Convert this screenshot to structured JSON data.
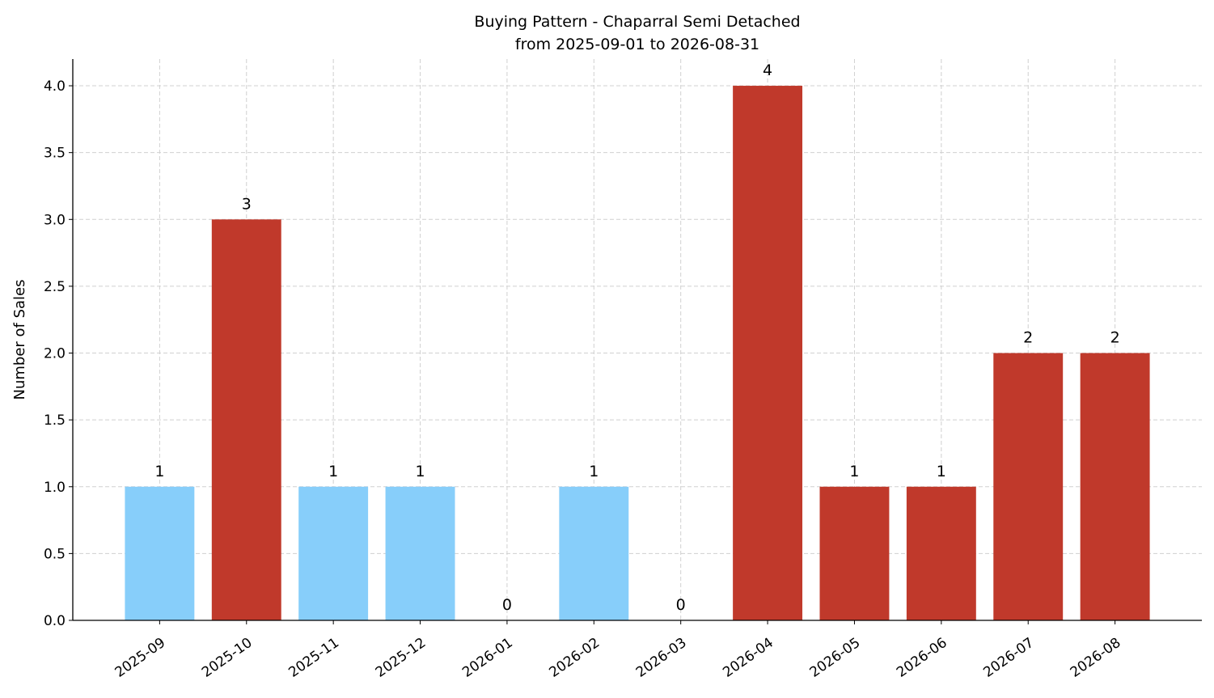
{
  "chart_data": {
    "type": "bar",
    "title": "Buying Pattern - Chaparral Semi Detached",
    "subtitle": "from 2025-09-01 to 2026-08-31",
    "y_label": "Number of Sales",
    "categories": [
      "2025-09",
      "2025-10",
      "2025-11",
      "2025-12",
      "2026-01",
      "2026-02",
      "2026-03",
      "2026-04",
      "2026-05",
      "2026-06",
      "2026-07",
      "2026-08"
    ],
    "values": [
      1,
      3,
      1,
      1,
      0,
      1,
      0,
      4,
      1,
      1,
      2,
      2
    ],
    "colors": [
      "#87cefa",
      "#c0392b",
      "#87cefa",
      "#87cefa",
      "#87cefa",
      "#87cefa",
      "#87cefa",
      "#c0392b",
      "#c0392b",
      "#c0392b",
      "#c0392b",
      "#c0392b"
    ],
    "ylim": [
      0,
      4.2
    ],
    "yticks": [
      {
        "value": 0,
        "label": "0.0"
      },
      {
        "value": 0.5,
        "label": "0.5"
      },
      {
        "value": 1,
        "label": "1.0"
      },
      {
        "value": 1.5,
        "label": "1.5"
      },
      {
        "value": 2,
        "label": "2.0"
      },
      {
        "value": 2.5,
        "label": "2.5"
      },
      {
        "value": 3,
        "label": "3.0"
      },
      {
        "value": 3.5,
        "label": "3.5"
      },
      {
        "value": 4,
        "label": "4.0"
      }
    ],
    "grid": true
  }
}
